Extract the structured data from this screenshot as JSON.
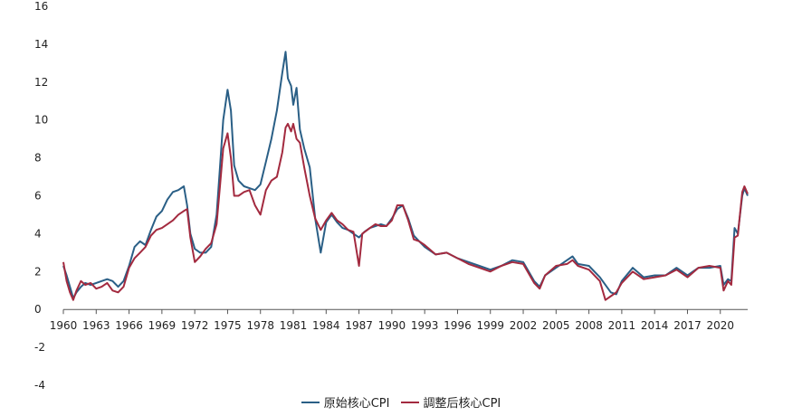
{
  "chart_data": {
    "type": "line",
    "ylim": [
      -4,
      16
    ],
    "yticks": [
      "16",
      "14",
      "12",
      "10",
      "8",
      "6",
      "4",
      "2",
      "0",
      "-2",
      "-4"
    ],
    "xlim": [
      1960,
      2022.5
    ],
    "xticks": [
      "1960",
      "1963",
      "1966",
      "1969",
      "1972",
      "1975",
      "1978",
      "1981",
      "1984",
      "1987",
      "1990",
      "1993",
      "1996",
      "1999",
      "2002",
      "2005",
      "2008",
      "2011",
      "2014",
      "2017",
      "2020"
    ],
    "legend_position": "bottom",
    "grid": false,
    "series": [
      {
        "name": "原始核心CPI",
        "color": "#2a5f86",
        "points": [
          [
            1960.0,
            2.3
          ],
          [
            1960.3,
            1.8
          ],
          [
            1960.6,
            1.2
          ],
          [
            1960.9,
            0.6
          ],
          [
            1961.2,
            0.9
          ],
          [
            1961.6,
            1.2
          ],
          [
            1962.0,
            1.4
          ],
          [
            1962.5,
            1.3
          ],
          [
            1963.0,
            1.4
          ],
          [
            1963.5,
            1.5
          ],
          [
            1964.0,
            1.6
          ],
          [
            1964.5,
            1.5
          ],
          [
            1965.0,
            1.2
          ],
          [
            1965.5,
            1.5
          ],
          [
            1966.0,
            2.3
          ],
          [
            1966.5,
            3.3
          ],
          [
            1967.0,
            3.6
          ],
          [
            1967.5,
            3.4
          ],
          [
            1968.0,
            4.2
          ],
          [
            1968.5,
            4.9
          ],
          [
            1969.0,
            5.2
          ],
          [
            1969.5,
            5.8
          ],
          [
            1970.0,
            6.2
          ],
          [
            1970.5,
            6.3
          ],
          [
            1971.0,
            6.5
          ],
          [
            1971.3,
            5.5
          ],
          [
            1971.6,
            4.0
          ],
          [
            1972.0,
            3.2
          ],
          [
            1972.5,
            3.0
          ],
          [
            1973.0,
            3.0
          ],
          [
            1973.5,
            3.3
          ],
          [
            1974.0,
            5.0
          ],
          [
            1974.3,
            7.5
          ],
          [
            1974.6,
            10.0
          ],
          [
            1975.0,
            11.6
          ],
          [
            1975.3,
            10.5
          ],
          [
            1975.6,
            7.6
          ],
          [
            1976.0,
            6.8
          ],
          [
            1976.5,
            6.5
          ],
          [
            1977.0,
            6.4
          ],
          [
            1977.5,
            6.3
          ],
          [
            1978.0,
            6.6
          ],
          [
            1978.5,
            7.8
          ],
          [
            1979.0,
            9.0
          ],
          [
            1979.5,
            10.5
          ],
          [
            1980.0,
            12.5
          ],
          [
            1980.3,
            13.6
          ],
          [
            1980.5,
            12.2
          ],
          [
            1980.8,
            11.8
          ],
          [
            1981.0,
            10.8
          ],
          [
            1981.3,
            11.7
          ],
          [
            1981.6,
            9.5
          ],
          [
            1982.0,
            8.5
          ],
          [
            1982.5,
            7.5
          ],
          [
            1983.0,
            4.8
          ],
          [
            1983.5,
            3.0
          ],
          [
            1984.0,
            4.6
          ],
          [
            1984.5,
            5.0
          ],
          [
            1985.0,
            4.6
          ],
          [
            1985.5,
            4.3
          ],
          [
            1986.0,
            4.2
          ],
          [
            1986.5,
            4.0
          ],
          [
            1987.0,
            3.8
          ],
          [
            1987.5,
            4.1
          ],
          [
            1988.0,
            4.3
          ],
          [
            1988.5,
            4.4
          ],
          [
            1989.0,
            4.5
          ],
          [
            1989.5,
            4.4
          ],
          [
            1990.0,
            4.8
          ],
          [
            1990.5,
            5.3
          ],
          [
            1991.0,
            5.5
          ],
          [
            1991.5,
            4.8
          ],
          [
            1992.0,
            3.9
          ],
          [
            1992.5,
            3.6
          ],
          [
            1993.0,
            3.3
          ],
          [
            1994.0,
            2.9
          ],
          [
            1995.0,
            3.0
          ],
          [
            1996.0,
            2.7
          ],
          [
            1997.0,
            2.5
          ],
          [
            1998.0,
            2.3
          ],
          [
            1999.0,
            2.1
          ],
          [
            2000.0,
            2.3
          ],
          [
            2001.0,
            2.6
          ],
          [
            2002.0,
            2.5
          ],
          [
            2003.0,
            1.5
          ],
          [
            2003.5,
            1.2
          ],
          [
            2004.0,
            1.8
          ],
          [
            2005.0,
            2.2
          ],
          [
            2006.0,
            2.6
          ],
          [
            2006.5,
            2.8
          ],
          [
            2007.0,
            2.4
          ],
          [
            2008.0,
            2.3
          ],
          [
            2009.0,
            1.7
          ],
          [
            2010.0,
            0.9
          ],
          [
            2010.5,
            0.8
          ],
          [
            2011.0,
            1.5
          ],
          [
            2012.0,
            2.2
          ],
          [
            2013.0,
            1.7
          ],
          [
            2014.0,
            1.8
          ],
          [
            2015.0,
            1.8
          ],
          [
            2016.0,
            2.2
          ],
          [
            2017.0,
            1.8
          ],
          [
            2018.0,
            2.2
          ],
          [
            2019.0,
            2.2
          ],
          [
            2020.0,
            2.3
          ],
          [
            2020.3,
            1.3
          ],
          [
            2020.7,
            1.6
          ],
          [
            2021.0,
            1.5
          ],
          [
            2021.3,
            4.3
          ],
          [
            2021.6,
            4.0
          ],
          [
            2022.0,
            6.0
          ],
          [
            2022.2,
            6.4
          ],
          [
            2022.5,
            6.0
          ]
        ]
      },
      {
        "name": "調整后核心CPI",
        "color": "#a32a3f",
        "points": [
          [
            1960.0,
            2.5
          ],
          [
            1960.3,
            1.5
          ],
          [
            1960.6,
            0.9
          ],
          [
            1960.9,
            0.5
          ],
          [
            1961.2,
            1.0
          ],
          [
            1961.6,
            1.5
          ],
          [
            1962.0,
            1.3
          ],
          [
            1962.5,
            1.4
          ],
          [
            1963.0,
            1.1
          ],
          [
            1963.5,
            1.2
          ],
          [
            1964.0,
            1.4
          ],
          [
            1964.5,
            1.0
          ],
          [
            1965.0,
            0.9
          ],
          [
            1965.5,
            1.2
          ],
          [
            1966.0,
            2.2
          ],
          [
            1966.5,
            2.7
          ],
          [
            1967.0,
            3.0
          ],
          [
            1967.5,
            3.3
          ],
          [
            1968.0,
            3.9
          ],
          [
            1968.5,
            4.2
          ],
          [
            1969.0,
            4.3
          ],
          [
            1969.5,
            4.5
          ],
          [
            1970.0,
            4.7
          ],
          [
            1970.5,
            5.0
          ],
          [
            1971.0,
            5.2
          ],
          [
            1971.3,
            5.3
          ],
          [
            1971.6,
            3.8
          ],
          [
            1972.0,
            2.5
          ],
          [
            1972.5,
            2.8
          ],
          [
            1973.0,
            3.2
          ],
          [
            1973.5,
            3.5
          ],
          [
            1974.0,
            4.5
          ],
          [
            1974.3,
            6.5
          ],
          [
            1974.6,
            8.5
          ],
          [
            1975.0,
            9.3
          ],
          [
            1975.3,
            8.0
          ],
          [
            1975.6,
            6.0
          ],
          [
            1976.0,
            6.0
          ],
          [
            1976.5,
            6.2
          ],
          [
            1977.0,
            6.3
          ],
          [
            1977.5,
            5.5
          ],
          [
            1978.0,
            5.0
          ],
          [
            1978.5,
            6.3
          ],
          [
            1979.0,
            6.8
          ],
          [
            1979.5,
            7.0
          ],
          [
            1980.0,
            8.3
          ],
          [
            1980.3,
            9.6
          ],
          [
            1980.5,
            9.8
          ],
          [
            1980.8,
            9.4
          ],
          [
            1981.0,
            9.8
          ],
          [
            1981.3,
            9.0
          ],
          [
            1981.6,
            8.8
          ],
          [
            1982.0,
            7.5
          ],
          [
            1982.5,
            6.0
          ],
          [
            1983.0,
            4.8
          ],
          [
            1983.5,
            4.2
          ],
          [
            1984.0,
            4.7
          ],
          [
            1984.5,
            5.1
          ],
          [
            1985.0,
            4.7
          ],
          [
            1985.5,
            4.5
          ],
          [
            1986.0,
            4.2
          ],
          [
            1986.5,
            4.1
          ],
          [
            1987.0,
            2.3
          ],
          [
            1987.3,
            4.0
          ],
          [
            1988.0,
            4.3
          ],
          [
            1988.5,
            4.5
          ],
          [
            1989.0,
            4.4
          ],
          [
            1989.5,
            4.4
          ],
          [
            1990.0,
            4.7
          ],
          [
            1990.5,
            5.5
          ],
          [
            1991.0,
            5.5
          ],
          [
            1991.5,
            4.7
          ],
          [
            1992.0,
            3.7
          ],
          [
            1992.5,
            3.6
          ],
          [
            1993.0,
            3.4
          ],
          [
            1994.0,
            2.9
          ],
          [
            1995.0,
            3.0
          ],
          [
            1996.0,
            2.7
          ],
          [
            1997.0,
            2.4
          ],
          [
            1998.0,
            2.2
          ],
          [
            1999.0,
            2.0
          ],
          [
            2000.0,
            2.3
          ],
          [
            2001.0,
            2.5
          ],
          [
            2002.0,
            2.4
          ],
          [
            2003.0,
            1.4
          ],
          [
            2003.5,
            1.1
          ],
          [
            2004.0,
            1.8
          ],
          [
            2005.0,
            2.3
          ],
          [
            2006.0,
            2.4
          ],
          [
            2006.5,
            2.6
          ],
          [
            2007.0,
            2.3
          ],
          [
            2008.0,
            2.1
          ],
          [
            2009.0,
            1.5
          ],
          [
            2009.5,
            0.5
          ],
          [
            2010.0,
            0.7
          ],
          [
            2010.5,
            0.9
          ],
          [
            2011.0,
            1.4
          ],
          [
            2012.0,
            2.0
          ],
          [
            2013.0,
            1.6
          ],
          [
            2014.0,
            1.7
          ],
          [
            2015.0,
            1.8
          ],
          [
            2016.0,
            2.1
          ],
          [
            2017.0,
            1.7
          ],
          [
            2018.0,
            2.2
          ],
          [
            2019.0,
            2.3
          ],
          [
            2020.0,
            2.2
          ],
          [
            2020.3,
            1.0
          ],
          [
            2020.7,
            1.5
          ],
          [
            2021.0,
            1.3
          ],
          [
            2021.3,
            3.8
          ],
          [
            2021.6,
            3.9
          ],
          [
            2022.0,
            6.2
          ],
          [
            2022.2,
            6.5
          ],
          [
            2022.5,
            6.1
          ]
        ]
      }
    ]
  }
}
